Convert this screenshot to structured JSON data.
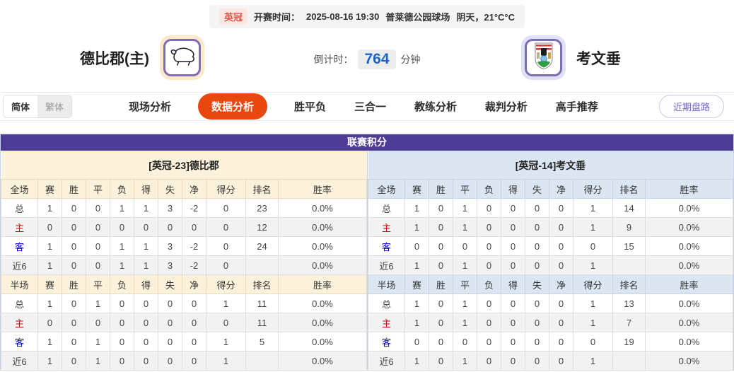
{
  "header": {
    "league_badge": "英冠",
    "kickoff_label": "开赛时间：",
    "kickoff_time": "2025-08-16 19:30",
    "venue": "普莱德公园球场",
    "weather": "阴天，21°C°C"
  },
  "teams": {
    "home": {
      "name": "德比郡(主)",
      "logo_icon": "derby-ram-icon"
    },
    "away": {
      "name": "考文垂",
      "logo_icon": "coventry-crest-icon"
    }
  },
  "countdown": {
    "label": "倒计时：",
    "value": "764",
    "unit": "分钟"
  },
  "lang_toggle": {
    "options": [
      {
        "label": "简体",
        "active": true
      },
      {
        "label": "繁体",
        "active": false
      }
    ]
  },
  "nav": {
    "items": [
      {
        "label": "现场分析",
        "active": false
      },
      {
        "label": "数据分析",
        "active": true
      },
      {
        "label": "胜平负",
        "active": false
      },
      {
        "label": "三合一",
        "active": false
      },
      {
        "label": "教练分析",
        "active": false
      },
      {
        "label": "裁判分析",
        "active": false
      },
      {
        "label": "高手推荐",
        "active": false
      }
    ],
    "recent_trend_button": "近期盘路"
  },
  "league_table": {
    "title": "联赛积分",
    "full_columns": [
      "全场",
      "赛",
      "胜",
      "平",
      "负",
      "得",
      "失",
      "净",
      "得分",
      "排名",
      "胜率"
    ],
    "half_columns": [
      "半场",
      "赛",
      "胜",
      "平",
      "负",
      "得",
      "失",
      "净",
      "得分",
      "排名",
      "胜率"
    ],
    "home": {
      "section_header": "[英冠-23]德比郡",
      "full_rows": [
        {
          "label": "总",
          "values": [
            "1",
            "0",
            "0",
            "1",
            "1",
            "3",
            "-2",
            "0",
            "23",
            "0.0%"
          ]
        },
        {
          "label": "主",
          "values": [
            "0",
            "0",
            "0",
            "0",
            "0",
            "0",
            "0",
            "0",
            "12",
            "0.0%"
          ]
        },
        {
          "label": "客",
          "values": [
            "1",
            "0",
            "0",
            "1",
            "1",
            "3",
            "-2",
            "0",
            "24",
            "0.0%"
          ]
        },
        {
          "label": "近6",
          "values": [
            "1",
            "0",
            "0",
            "1",
            "1",
            "3",
            "-2",
            "0",
            "",
            "0.0%"
          ]
        }
      ],
      "half_rows": [
        {
          "label": "总",
          "values": [
            "1",
            "0",
            "1",
            "0",
            "0",
            "0",
            "0",
            "1",
            "11",
            "0.0%"
          ]
        },
        {
          "label": "主",
          "values": [
            "0",
            "0",
            "0",
            "0",
            "0",
            "0",
            "0",
            "0",
            "11",
            "0.0%"
          ]
        },
        {
          "label": "客",
          "values": [
            "1",
            "0",
            "1",
            "0",
            "0",
            "0",
            "0",
            "1",
            "5",
            "0.0%"
          ]
        },
        {
          "label": "近6",
          "values": [
            "1",
            "0",
            "1",
            "0",
            "0",
            "0",
            "0",
            "1",
            "",
            "0.0%"
          ]
        }
      ]
    },
    "away": {
      "section_header": "[英冠-14]考文垂",
      "full_rows": [
        {
          "label": "总",
          "values": [
            "1",
            "0",
            "1",
            "0",
            "0",
            "0",
            "0",
            "1",
            "14",
            "0.0%"
          ]
        },
        {
          "label": "主",
          "values": [
            "1",
            "0",
            "1",
            "0",
            "0",
            "0",
            "0",
            "1",
            "9",
            "0.0%"
          ]
        },
        {
          "label": "客",
          "values": [
            "0",
            "0",
            "0",
            "0",
            "0",
            "0",
            "0",
            "0",
            "15",
            "0.0%"
          ]
        },
        {
          "label": "近6",
          "values": [
            "1",
            "0",
            "1",
            "0",
            "0",
            "0",
            "0",
            "1",
            "",
            "0.0%"
          ]
        }
      ],
      "half_rows": [
        {
          "label": "总",
          "values": [
            "1",
            "0",
            "1",
            "0",
            "0",
            "0",
            "0",
            "1",
            "13",
            "0.0%"
          ]
        },
        {
          "label": "主",
          "values": [
            "1",
            "0",
            "1",
            "0",
            "0",
            "0",
            "0",
            "1",
            "7",
            "0.0%"
          ]
        },
        {
          "label": "客",
          "values": [
            "0",
            "0",
            "0",
            "0",
            "0",
            "0",
            "0",
            "0",
            "19",
            "0.0%"
          ]
        },
        {
          "label": "近6",
          "values": [
            "1",
            "0",
            "1",
            "0",
            "0",
            "0",
            "0",
            "1",
            "",
            "0.0%"
          ]
        }
      ]
    }
  },
  "colors": {
    "title_bar_purple": "#4e3c95",
    "active_tab_orange": "#e8470f",
    "home_header_cream": "#fcf2dc",
    "away_header_blue": "#dbe6f2",
    "home_row_label_red": "#cc0000",
    "away_row_label_blue": "#0000cc",
    "countdown_blue": "#1b62c8",
    "league_badge_red": "#dc5245"
  }
}
